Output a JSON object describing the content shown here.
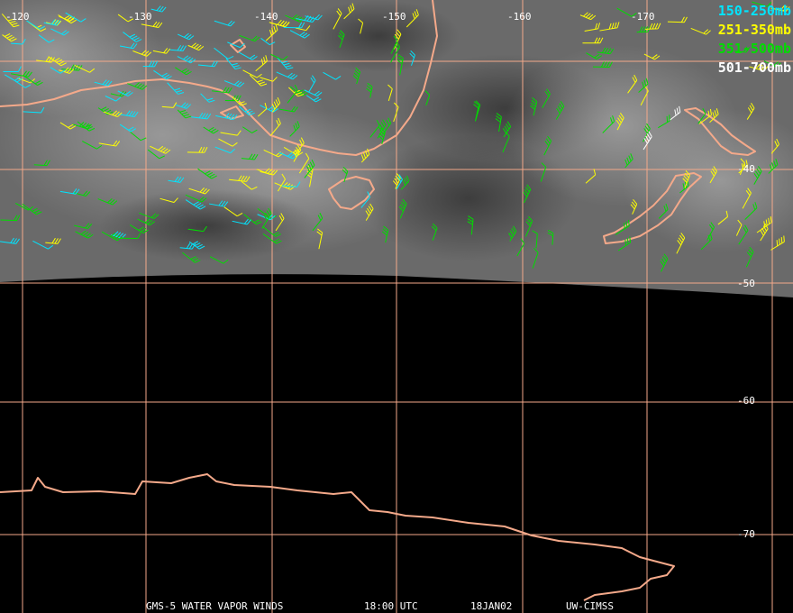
{
  "map": {
    "longitude_labels": [
      "-120",
      "-130",
      "-140",
      "-150",
      "-160",
      "-170"
    ],
    "latitude_labels": [
      "-40",
      "-50",
      "-60",
      "-70"
    ],
    "colors": {
      "grid": "#f4a98a",
      "coast": "#f4a98a",
      "ocean_no_data": "#000000",
      "imagery": "#6a6a6a"
    }
  },
  "legend": [
    {
      "label": "150-250mb",
      "color": "#00e5ff"
    },
    {
      "label": "251-350mb",
      "color": "#ffff00"
    },
    {
      "label": "351-500mb",
      "color": "#00dd00"
    },
    {
      "label": "501-700mb",
      "color": "#ffffff"
    }
  ],
  "footer": {
    "satellite": "GMS-5 WATER VAPOR WINDS",
    "time": "18:00 UTC",
    "date": "18JAN02",
    "source": "UW-CIMSS"
  }
}
